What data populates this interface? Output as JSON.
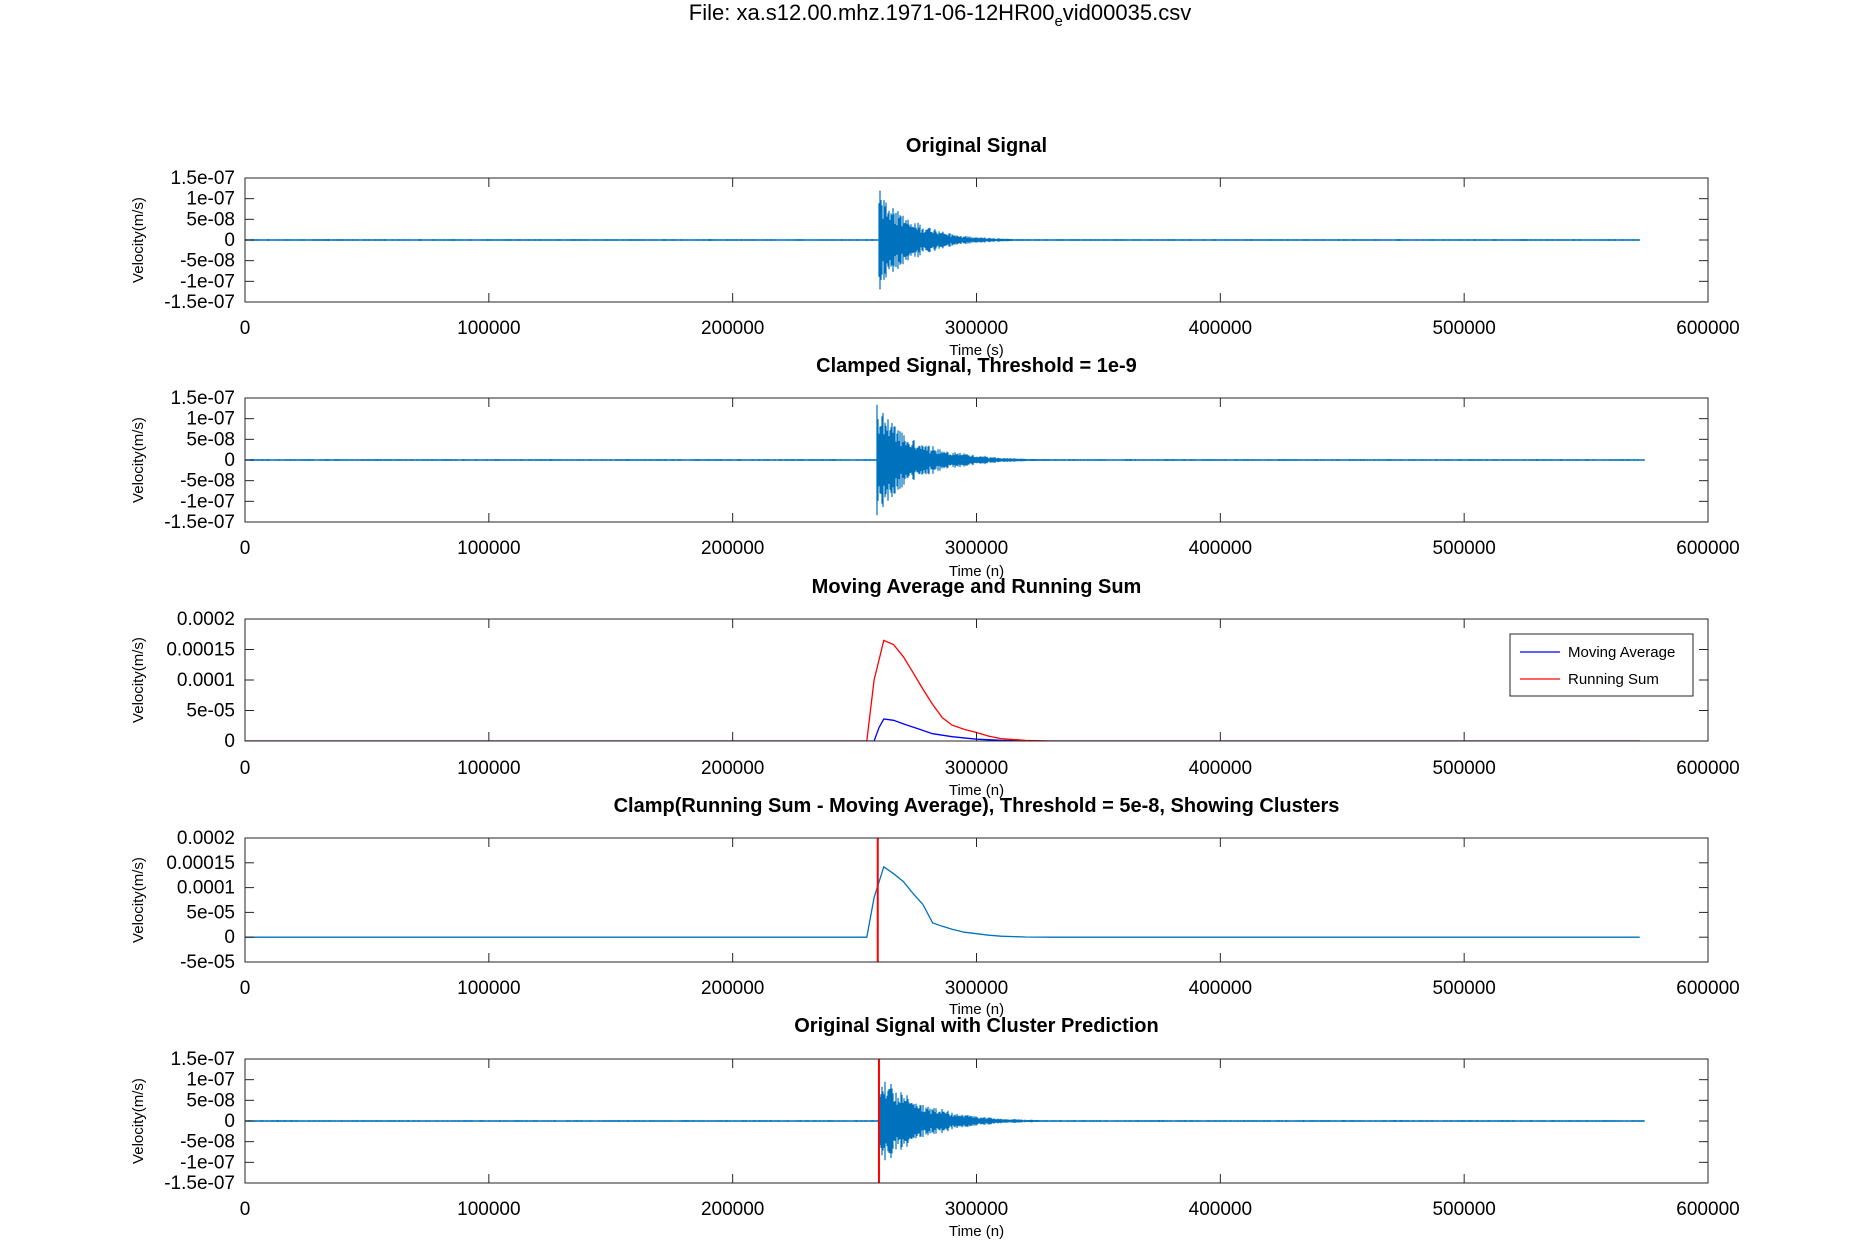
{
  "figure": {
    "title_prefix": "File: xa.s12.00.mhz.1971-06-12HR00",
    "title_sub": "e",
    "title_suffix": "vid00035.csv"
  },
  "colors": {
    "signal": "#0072BD",
    "moving_average": "#0000FF",
    "running_sum": "#FF0000",
    "cluster_line": "#FF0000",
    "axes": "#262626"
  },
  "chart_data": [
    {
      "type": "line",
      "title": "Original Signal",
      "xlabel": "Time (s)",
      "ylabel": "Velocity(m/s)",
      "xlim": [
        0,
        600000
      ],
      "ylim": [
        -1.5e-07,
        1.5e-07
      ],
      "xticks": [
        0,
        100000,
        200000,
        300000,
        400000,
        500000,
        600000
      ],
      "xtick_labels": [
        "0",
        "100000",
        "200000",
        "300000",
        "400000",
        "500000",
        "600000"
      ],
      "yticks": [
        -1.5e-07,
        -1e-07,
        -5e-08,
        0,
        5e-08,
        1e-07,
        1.5e-07
      ],
      "ytick_labels": [
        "-1.5e-07",
        "-1e-07",
        "-5e-08",
        "0",
        "5e-08",
        "1e-07",
        "1.5e-07"
      ],
      "series": [
        {
          "kind": "seismic",
          "data_end": 572000,
          "onset": 260000,
          "peak_amplitude": 1.45e-07,
          "decay_end": 320000,
          "noise": 1.5e-09
        }
      ]
    },
    {
      "type": "line",
      "title": "Clamped Signal, Threshold = 1e-9",
      "xlabel": "Time (n)",
      "ylabel": "Velocity(m/s)",
      "xlim": [
        0,
        600000
      ],
      "ylim": [
        -1.5e-07,
        1.5e-07
      ],
      "xticks": [
        0,
        100000,
        200000,
        300000,
        400000,
        500000,
        600000
      ],
      "xtick_labels": [
        "0",
        "100000",
        "200000",
        "300000",
        "400000",
        "500000",
        "600000"
      ],
      "yticks": [
        -1.5e-07,
        -1e-07,
        -5e-08,
        0,
        5e-08,
        1e-07,
        1.5e-07
      ],
      "ytick_labels": [
        "-1.5e-07",
        "-1e-07",
        "-5e-08",
        "0",
        "5e-08",
        "1e-07",
        "1.5e-07"
      ],
      "series": [
        {
          "kind": "seismic",
          "data_end": 574000,
          "onset": 259000,
          "peak_amplitude": 1.45e-07,
          "decay_end": 330000,
          "noise": 1.5e-09
        }
      ]
    },
    {
      "type": "line",
      "title": "Moving Average and Running Sum",
      "xlabel": "Time (n)",
      "ylabel": "Velocity(m/s)",
      "xlim": [
        0,
        600000
      ],
      "ylim": [
        0,
        0.0002
      ],
      "xticks": [
        0,
        100000,
        200000,
        300000,
        400000,
        500000,
        600000
      ],
      "xtick_labels": [
        "0",
        "100000",
        "200000",
        "300000",
        "400000",
        "500000",
        "600000"
      ],
      "yticks": [
        0,
        5e-05,
        0.0001,
        0.00015,
        0.0002
      ],
      "ytick_labels": [
        "0",
        "5e-05",
        "0.0001",
        "0.00015",
        "0.0002"
      ],
      "legend": {
        "position": "top-right",
        "entries": [
          "Moving Average",
          "Running Sum"
        ]
      },
      "series": [
        {
          "name": "Moving Average",
          "color": "#0000FF",
          "x": [
            0,
            258000,
            260000,
            262000,
            266000,
            270000,
            276000,
            282000,
            290000,
            300000,
            310000,
            320000,
            330000,
            572000
          ],
          "y": [
            0,
            0,
            2.2e-05,
            3.6e-05,
            3.4e-05,
            2.8e-05,
            2e-05,
            1.2e-05,
            7e-06,
            3e-06,
            1.2e-06,
            4e-07,
            0,
            0
          ]
        },
        {
          "name": "Running Sum",
          "color": "#FF0000",
          "x": [
            0,
            255000,
            258000,
            262000,
            266000,
            270000,
            274000,
            278000,
            282000,
            286000,
            290000,
            295000,
            300000,
            305000,
            310000,
            320000,
            330000,
            572000
          ],
          "y": [
            0,
            0,
            0.0001,
            0.000165,
            0.000158,
            0.000138,
            0.000112,
            8.5e-05,
            6e-05,
            3.8e-05,
            2.6e-05,
            1.9e-05,
            1.4e-05,
            8e-06,
            4e-06,
            1e-06,
            0,
            0
          ]
        }
      ]
    },
    {
      "type": "line",
      "title": "Clamp(Running Sum - Moving Average), Threshold = 5e-8, Showing Clusters",
      "xlabel": "Time (n)",
      "ylabel": "Velocity(m/s)",
      "xlim": [
        0,
        600000
      ],
      "ylim": [
        -5e-05,
        0.0002
      ],
      "xticks": [
        0,
        100000,
        200000,
        300000,
        400000,
        500000,
        600000
      ],
      "xtick_labels": [
        "0",
        "100000",
        "200000",
        "300000",
        "400000",
        "500000",
        "600000"
      ],
      "yticks": [
        -5e-05,
        0,
        5e-05,
        0.0001,
        0.00015,
        0.0002
      ],
      "ytick_labels": [
        "-5e-05",
        "0",
        "5e-05",
        "0.0001",
        "0.00015",
        "0.0002"
      ],
      "cluster_x": 259500,
      "series": [
        {
          "color": "#0072BD",
          "x": [
            0,
            255000,
            258000,
            262000,
            266000,
            270000,
            274000,
            278000,
            282000,
            286000,
            290000,
            295000,
            300000,
            305000,
            310000,
            320000,
            330000,
            572000
          ],
          "y": [
            0,
            0,
            8e-05,
            0.000142,
            0.000128,
            0.000112,
            8.8e-05,
            6.6e-05,
            2.9e-05,
            2.2e-05,
            1.6e-05,
            1e-05,
            7e-06,
            4e-06,
            2e-06,
            5e-07,
            0,
            0
          ]
        }
      ]
    },
    {
      "type": "line",
      "title": "Original Signal with Cluster Prediction",
      "xlabel": "Time (n)",
      "ylabel": "Velocity(m/s)",
      "xlim": [
        0,
        600000
      ],
      "ylim": [
        -1.5e-07,
        1.5e-07
      ],
      "xticks": [
        0,
        100000,
        200000,
        300000,
        400000,
        500000,
        600000
      ],
      "xtick_labels": [
        "0",
        "100000",
        "200000",
        "300000",
        "400000",
        "500000",
        "600000"
      ],
      "yticks": [
        -1.5e-07,
        -1e-07,
        -5e-08,
        0,
        5e-08,
        1e-07,
        1.5e-07
      ],
      "ytick_labels": [
        "-1.5e-07",
        "-1e-07",
        "-5e-08",
        "0",
        "5e-08",
        "1e-07",
        "1.5e-07"
      ],
      "cluster_x": 260000,
      "series": [
        {
          "kind": "seismic",
          "data_end": 574000,
          "onset": 260000,
          "peak_amplitude": 1.45e-07,
          "decay_end": 330000,
          "noise": 1.5e-09
        }
      ]
    }
  ]
}
